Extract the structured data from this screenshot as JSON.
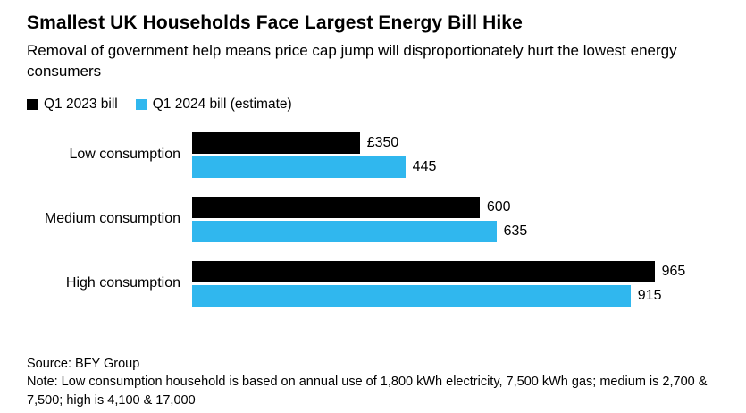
{
  "header": {
    "title": "Smallest UK Households Face Largest Energy Bill Hike",
    "subtitle": "Removal of government help means price cap jump will disproportionately hurt the lowest energy consumers"
  },
  "chart_data": {
    "type": "bar",
    "orientation": "horizontal",
    "title": "Smallest UK Households Face Largest Energy Bill Hike",
    "subtitle": "Removal of government help means price cap jump will disproportionately hurt the lowest energy consumers",
    "categories": [
      "Low consumption",
      "Medium consumption",
      "High consumption"
    ],
    "series": [
      {
        "name": "Q1 2023 bill",
        "color": "#000000",
        "values": [
          350,
          600,
          965
        ],
        "labels": [
          "£350",
          "600",
          "965"
        ]
      },
      {
        "name": "Q1 2024 bill (estimate)",
        "color": "#30b7ee",
        "values": [
          445,
          635,
          915
        ],
        "labels": [
          "445",
          "635",
          "915"
        ]
      }
    ],
    "xmax": 1100,
    "grid": false,
    "legend_position": "top-left",
    "currency_unit": "£"
  },
  "footer": {
    "source": "Source: BFY Group",
    "note": "Note: Low consumption household is based on annual use of 1,800 kWh electricity, 7,500 kWh gas; medium is 2,700 & 7,500; high is 4,100 & 17,000"
  }
}
